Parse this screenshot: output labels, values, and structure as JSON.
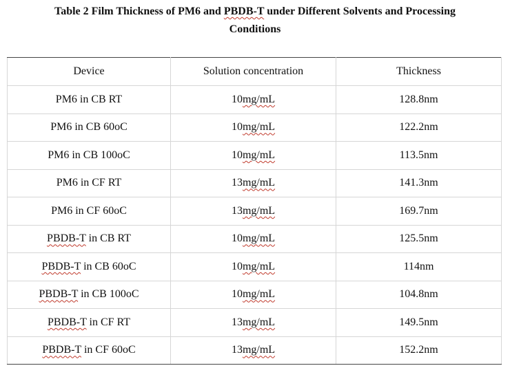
{
  "caption": {
    "line1_prefix": "Table 2 Film Thickness of PM6 and ",
    "line1_pbdb": "PBDB-T",
    "line1_suffix": " under Different Solvents and Processing",
    "line2": "Conditions"
  },
  "table": {
    "headers": [
      "Device",
      "Solution concentration",
      "Thickness"
    ],
    "rows": [
      {
        "device_prefix": "",
        "device_pbdb": "",
        "device_rest": "PM6 in CB RT",
        "conc_num": "10",
        "conc_unit": "mg/mL",
        "thickness": "128.8nm"
      },
      {
        "device_prefix": "",
        "device_pbdb": "",
        "device_rest": "PM6 in CB 60oC",
        "conc_num": "10",
        "conc_unit": "mg/mL",
        "thickness": "122.2nm"
      },
      {
        "device_prefix": "",
        "device_pbdb": "",
        "device_rest": "PM6 in CB 100oC",
        "conc_num": "10",
        "conc_unit": "mg/mL",
        "thickness": "113.5nm"
      },
      {
        "device_prefix": "",
        "device_pbdb": "",
        "device_rest": "PM6 in CF RT",
        "conc_num": "13",
        "conc_unit": "mg/mL",
        "thickness": "141.3nm"
      },
      {
        "device_prefix": "",
        "device_pbdb": "",
        "device_rest": "PM6 in CF 60oC",
        "conc_num": "13",
        "conc_unit": "mg/mL",
        "thickness": "169.7nm"
      },
      {
        "device_prefix": "",
        "device_pbdb": "PBDB-T",
        "device_rest": " in CB RT",
        "conc_num": "10",
        "conc_unit": "mg/mL",
        "thickness": "125.5nm"
      },
      {
        "device_prefix": "",
        "device_pbdb": "PBDB-T",
        "device_rest": " in CB 60oC",
        "conc_num": "10",
        "conc_unit": "mg/mL",
        "thickness": "114nm"
      },
      {
        "device_prefix": "",
        "device_pbdb": "PBDB-T",
        "device_rest": " in CB 100oC",
        "conc_num": "10",
        "conc_unit": "mg/mL",
        "thickness": "104.8nm"
      },
      {
        "device_prefix": "",
        "device_pbdb": "PBDB-T",
        "device_rest": " in CF RT",
        "conc_num": "13",
        "conc_unit": "mg/mL",
        "thickness": "149.5nm"
      },
      {
        "device_prefix": "",
        "device_pbdb": "PBDB-T",
        "device_rest": " in CF 60oC",
        "conc_num": "13",
        "conc_unit": "mg/mL",
        "thickness": "152.2nm"
      }
    ]
  },
  "colors": {
    "spellcheck_underline": "#c0392b",
    "grid_line": "#d6d6d6",
    "rule_line": "#444444"
  }
}
